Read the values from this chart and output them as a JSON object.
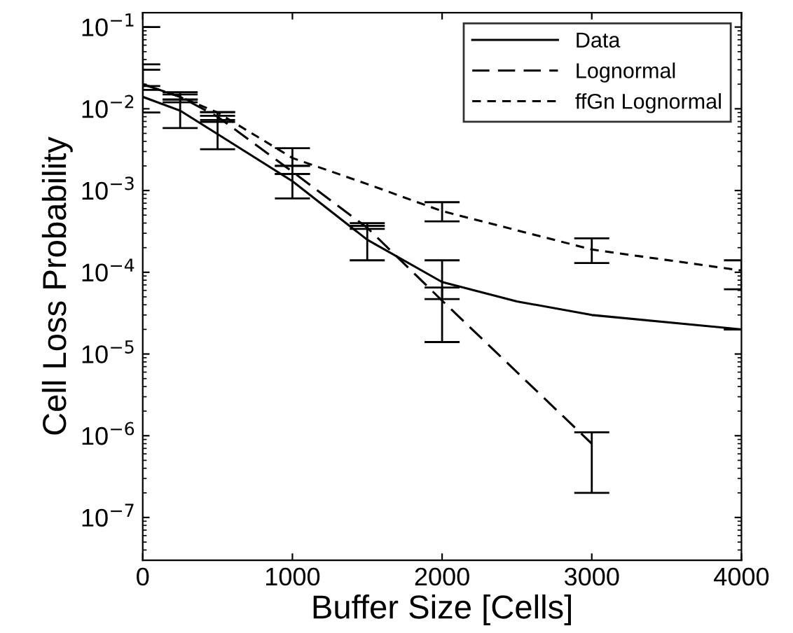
{
  "chart_data": {
    "type": "line",
    "xlabel": "Buffer Size [Cells]",
    "ylabel": "Cell Loss Probability",
    "log": "y",
    "legend": "top right",
    "grid": false,
    "marker": "none",
    "xlim": [
      0,
      4000
    ],
    "xticks": [
      0,
      1000,
      2000,
      3000,
      4000
    ],
    "ylim": [
      3e-08,
      0.15
    ],
    "yticks": [
      {
        "value": 1e-07,
        "label": "10$^{−7}$"
      },
      {
        "value": 1e-06,
        "label": "10$^{−6}$"
      },
      {
        "value": 1e-05,
        "label": "10$^{−5}$"
      },
      {
        "value": 0.0001,
        "label": "10$^{−4}$"
      },
      {
        "value": 0.001,
        "label": "10$^{−3}$"
      },
      {
        "value": 0.01,
        "label": "10$^{−2}$"
      },
      {
        "value": 0.1,
        "label": "10$^{−1}$"
      }
    ],
    "series": [
      {
        "name": "Data",
        "color": "#000000",
        "line_style": "solid",
        "x": [
          0,
          250,
          500,
          1000,
          1500,
          2000,
          2500,
          3000,
          4000
        ],
        "values": [
          0.014,
          0.0095,
          0.0049,
          0.0013,
          0.00025,
          7.6e-05,
          4.4e-05,
          3e-05,
          2e-05
        ],
        "errors": [
          [
            0.009,
            0.1
          ],
          [
            0.0058,
            0.013
          ],
          [
            0.0032,
            0.0073
          ],
          [
            0.0008,
            0.0016
          ],
          [
            0.00014,
            0.0004
          ],
          [
            4.7e-05,
            0.00014
          ],
          null,
          null,
          [
            2e-05,
            2e-05
          ]
        ]
      },
      {
        "name": "Lognormal",
        "color": "#000000",
        "line_style": "dashed",
        "x": [
          0,
          250,
          500,
          1000,
          1500,
          2000,
          3000
        ],
        "values": [
          0.02,
          0.014,
          0.008,
          0.0017,
          0.00035,
          4.5e-05,
          8e-07
        ],
        "errors": [
          [
            0.017,
            0.035
          ],
          [
            0.012,
            0.015
          ],
          [
            0.0069,
            0.0091
          ],
          [
            0.0016,
            0.002
          ],
          [
            0.00034,
            0.00037
          ],
          [
            1.4e-05,
            6.5e-05
          ],
          [
            2e-07,
            1.1e-06
          ]
        ]
      },
      {
        "name": "ffGn Lognormal",
        "color": "#000000",
        "line_style": "dotted",
        "x": [
          0,
          250,
          500,
          1000,
          1500,
          2000,
          3000,
          4000
        ],
        "values": [
          0.02,
          0.014,
          0.009,
          0.0025,
          0.0012,
          0.00056,
          0.00019,
          0.000105
        ],
        "errors": [
          [
            0.019,
            0.03
          ],
          [
            0.013,
            0.016
          ],
          [
            0.0082,
            0.0091
          ],
          [
            0.002,
            0.0033
          ],
          null,
          [
            0.00042,
            0.00072
          ],
          [
            0.00013,
            0.00026
          ],
          [
            6.2e-05,
            0.00014
          ]
        ]
      }
    ]
  }
}
